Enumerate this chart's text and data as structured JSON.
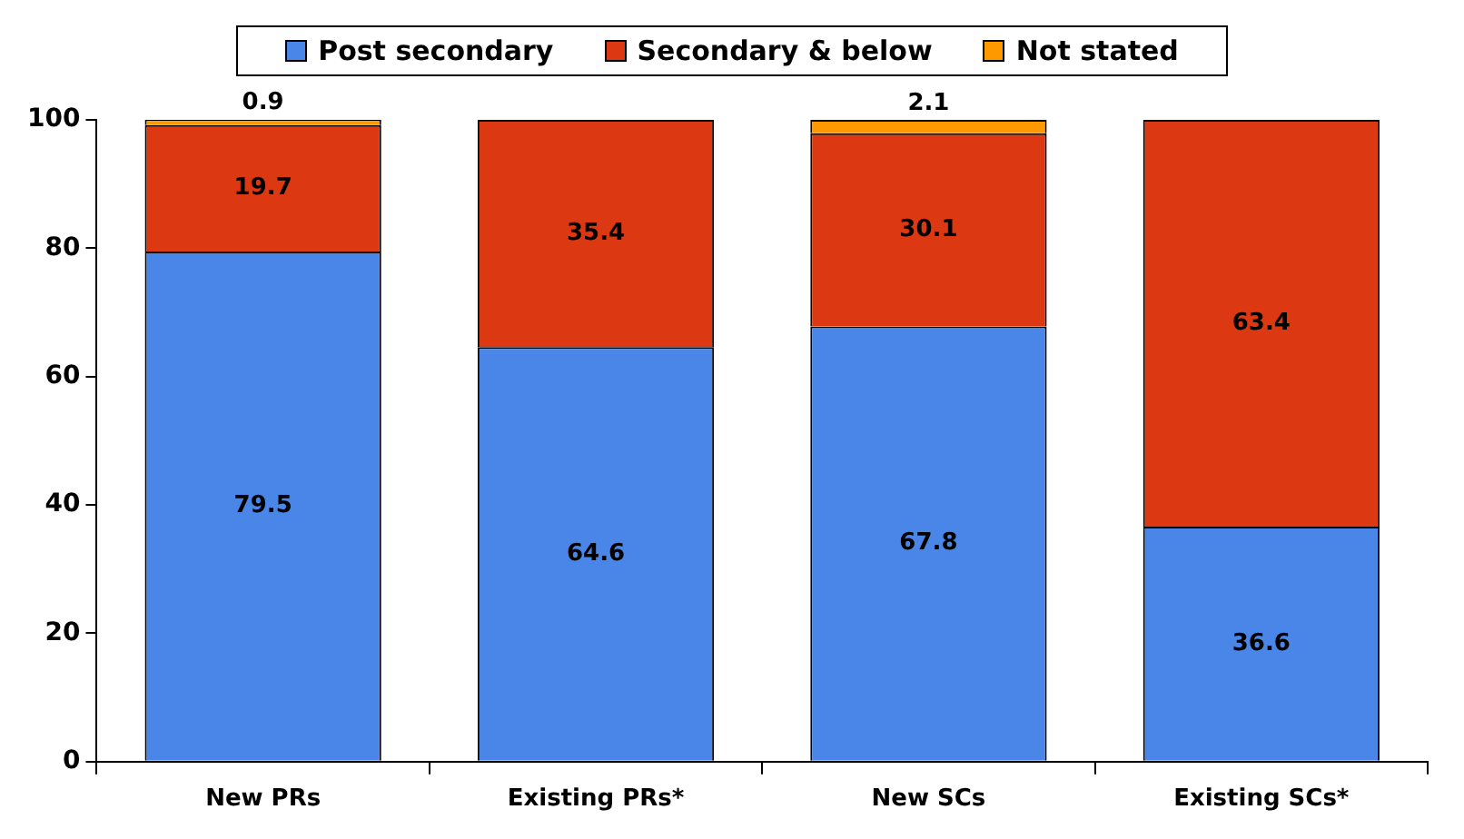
{
  "chart_data": {
    "type": "bar",
    "stacked": true,
    "categories": [
      "New PRs",
      "Existing PRs*",
      "New SCs",
      "Existing SCs*"
    ],
    "series": [
      {
        "name": "Post secondary",
        "color": "#4a86e8",
        "values": [
          79.5,
          64.6,
          67.8,
          36.6
        ],
        "value_labels": [
          "79.5",
          "64.6",
          "67.8",
          "36.6"
        ]
      },
      {
        "name": "Secondary & below",
        "color": "#dc3912",
        "values": [
          19.7,
          35.4,
          30.1,
          63.4
        ],
        "value_labels": [
          "19.7",
          "35.4",
          "30.1",
          "63.4"
        ]
      },
      {
        "name": "Not stated",
        "color": "#ff9900",
        "values": [
          0.9,
          0,
          2.1,
          0
        ],
        "value_labels": [
          "0.9",
          null,
          "2.1",
          null
        ]
      }
    ],
    "ylim": [
      0,
      100
    ],
    "yticks": [
      0,
      20,
      40,
      60,
      80,
      100
    ],
    "grid": false,
    "legend": "top"
  }
}
